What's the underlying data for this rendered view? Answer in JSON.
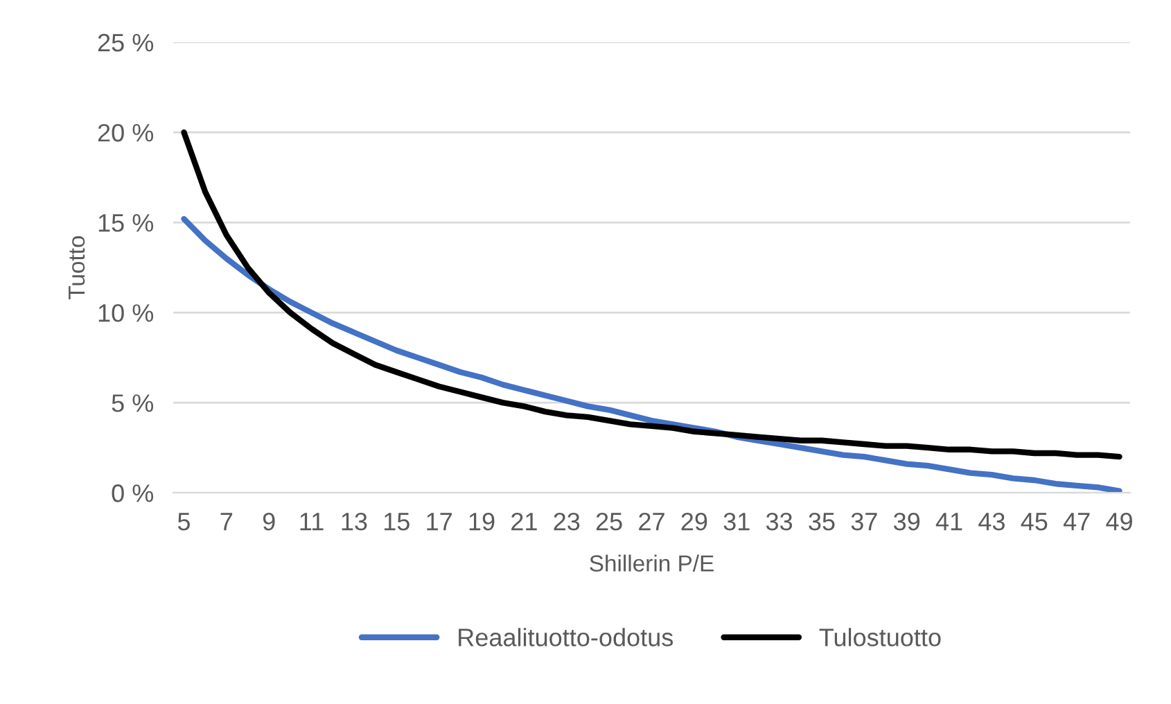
{
  "chart_data": {
    "type": "line",
    "xlabel": "Shillerin P/E",
    "ylabel": "Tuotto",
    "categories": [
      "5",
      null,
      "7",
      null,
      "9",
      null,
      "11",
      null,
      "13",
      null,
      "15",
      null,
      "17",
      null,
      "19",
      null,
      "21",
      null,
      "23",
      null,
      "25",
      null,
      "27",
      null,
      "29",
      null,
      "31",
      null,
      "33",
      null,
      "35",
      null,
      "37",
      null,
      "39",
      null,
      "41",
      null,
      "43",
      null,
      "45",
      null,
      "47",
      null,
      "49"
    ],
    "series": [
      {
        "name": "Reaalituotto-odotus",
        "color": "#4472c4",
        "values": [
          15.2,
          14.0,
          13.0,
          12.1,
          11.3,
          10.6,
          10.0,
          9.4,
          8.9,
          8.4,
          7.9,
          7.5,
          7.1,
          6.7,
          6.4,
          6.0,
          5.7,
          5.4,
          5.1,
          4.8,
          4.6,
          4.3,
          4.0,
          3.8,
          3.6,
          3.4,
          3.1,
          2.9,
          2.7,
          2.5,
          2.3,
          2.1,
          2.0,
          1.8,
          1.6,
          1.5,
          1.3,
          1.1,
          1.0,
          0.8,
          0.7,
          0.5,
          0.4,
          0.3,
          0.1
        ]
      },
      {
        "name": "Tulostuotto",
        "color": "#000000",
        "values": [
          20.0,
          16.7,
          14.3,
          12.5,
          11.1,
          10.0,
          9.1,
          8.3,
          7.7,
          7.1,
          6.7,
          6.3,
          5.9,
          5.6,
          5.3,
          5.0,
          4.8,
          4.5,
          4.3,
          4.2,
          4.0,
          3.8,
          3.7,
          3.6,
          3.4,
          3.3,
          3.2,
          3.1,
          3.0,
          2.9,
          2.9,
          2.8,
          2.7,
          2.6,
          2.6,
          2.5,
          2.4,
          2.4,
          2.3,
          2.3,
          2.2,
          2.2,
          2.1,
          2.1,
          2.0
        ]
      }
    ],
    "ylim": [
      0,
      25
    ],
    "yticks": [
      {
        "value": 0,
        "label": "0 %"
      },
      {
        "value": 5,
        "label": "5 %"
      },
      {
        "value": 10,
        "label": "10 %"
      },
      {
        "value": 15,
        "label": "15 %"
      },
      {
        "value": 20,
        "label": "20 %"
      },
      {
        "value": 25,
        "label": "25 %"
      }
    ],
    "grid": "y",
    "legend": "bottom",
    "marker": "none",
    "line_style": "solid"
  }
}
